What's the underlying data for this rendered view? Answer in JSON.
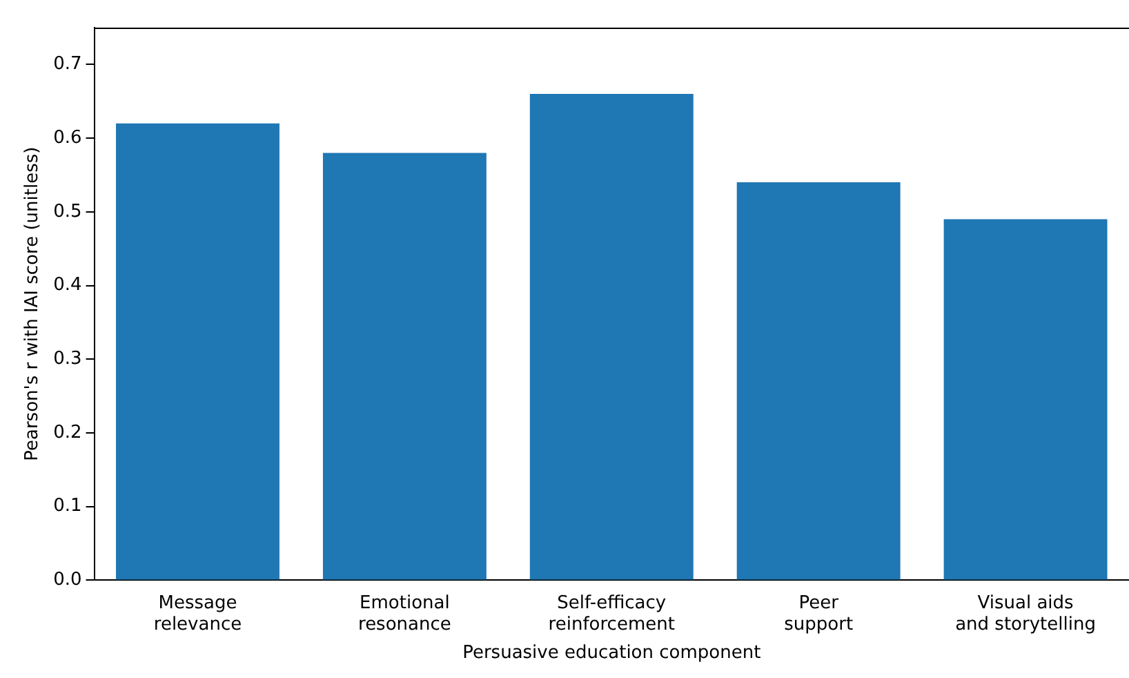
{
  "chart_data": {
    "type": "bar",
    "xlabel": "Persuasive education component",
    "ylabel": "Pearson's r with IAI score (unitless)",
    "categories": [
      "Message\nrelevance",
      "Emotional\nresonance",
      "Self-efficacy\nreinforcement",
      "Peer\nsupport",
      "Visual aids\nand storytelling"
    ],
    "values": [
      0.62,
      0.58,
      0.66,
      0.54,
      0.49
    ],
    "color": "#1f77b4",
    "ylim": [
      0,
      0.75
    ],
    "yticks": [
      {
        "value": 0,
        "label": "0.0"
      },
      0.1,
      0.2,
      0.3,
      0.4,
      0.5,
      0.6,
      0.7
    ],
    "grid": false
  }
}
